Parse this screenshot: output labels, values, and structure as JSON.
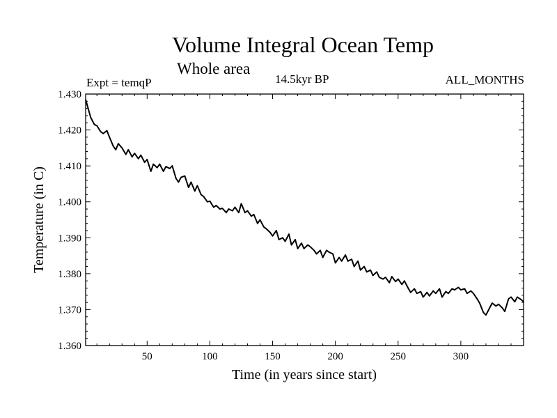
{
  "chart_data": {
    "type": "line",
    "title": "Volume Integral Ocean Temp",
    "subtitle": "Whole area",
    "annotations": {
      "left": "Expt = temqP",
      "center": "14.5kyr BP",
      "right": "ALL_MONTHS"
    },
    "xlabel": "Time (in years since start)",
    "ylabel": "Temperature (in C)",
    "xlim": [
      1,
      350
    ],
    "ylim": [
      1.36,
      1.43
    ],
    "x_ticks": [
      50,
      100,
      150,
      200,
      250,
      300
    ],
    "y_ticks": [
      1.36,
      1.37,
      1.38,
      1.39,
      1.4,
      1.41,
      1.42,
      1.43
    ],
    "y_tick_labels": [
      "1.360",
      "1.370",
      "1.380",
      "1.390",
      "1.400",
      "1.410",
      "1.420",
      "1.430"
    ],
    "series": [
      {
        "name": "Volume Integral Ocean Temp",
        "color": "#000000",
        "x": [
          1,
          3,
          5,
          8,
          10,
          13,
          15,
          18,
          20,
          23,
          25,
          27,
          30,
          33,
          35,
          38,
          40,
          43,
          45,
          48,
          50,
          53,
          55,
          58,
          60,
          63,
          65,
          68,
          70,
          73,
          75,
          77,
          80,
          83,
          85,
          88,
          90,
          93,
          95,
          98,
          100,
          103,
          105,
          108,
          110,
          113,
          115,
          118,
          120,
          123,
          125,
          128,
          130,
          133,
          135,
          138,
          140,
          143,
          145,
          148,
          150,
          153,
          155,
          158,
          160,
          163,
          165,
          168,
          170,
          173,
          175,
          178,
          180,
          183,
          185,
          188,
          190,
          193,
          195,
          198,
          200,
          203,
          205,
          208,
          210,
          213,
          215,
          218,
          220,
          223,
          225,
          228,
          230,
          233,
          235,
          238,
          240,
          243,
          245,
          248,
          250,
          253,
          255,
          258,
          260,
          263,
          265,
          268,
          270,
          273,
          275,
          278,
          280,
          283,
          285,
          288,
          290,
          293,
          295,
          298,
          300,
          303,
          305,
          308,
          310,
          313,
          315,
          318,
          320,
          323,
          325,
          328,
          330,
          333,
          335,
          338,
          340,
          343,
          345,
          348,
          350
        ],
        "values": [
          1.4285,
          1.426,
          1.4235,
          1.4215,
          1.4212,
          1.4195,
          1.419,
          1.4198,
          1.418,
          1.4155,
          1.4145,
          1.4162,
          1.415,
          1.4132,
          1.4145,
          1.4125,
          1.4135,
          1.412,
          1.413,
          1.411,
          1.4118,
          1.4085,
          1.4105,
          1.4095,
          1.4105,
          1.4085,
          1.4098,
          1.4093,
          1.41,
          1.4065,
          1.4055,
          1.4068,
          1.4072,
          1.404,
          1.4055,
          1.403,
          1.4045,
          1.402,
          1.4015,
          1.4,
          1.4002,
          1.3985,
          1.399,
          1.398,
          1.3982,
          1.397,
          1.398,
          1.3975,
          1.3985,
          1.397,
          1.3995,
          1.397,
          1.3975,
          1.396,
          1.3965,
          1.394,
          1.395,
          1.393,
          1.3925,
          1.3915,
          1.3905,
          1.392,
          1.3895,
          1.39,
          1.389,
          1.391,
          1.388,
          1.3895,
          1.387,
          1.3885,
          1.387,
          1.388,
          1.3875,
          1.3865,
          1.3855,
          1.3865,
          1.3845,
          1.3865,
          1.386,
          1.3855,
          1.383,
          1.3845,
          1.3835,
          1.3852,
          1.3835,
          1.384,
          1.382,
          1.3835,
          1.381,
          1.382,
          1.3805,
          1.381,
          1.3795,
          1.3805,
          1.379,
          1.3785,
          1.379,
          1.3775,
          1.3792,
          1.3778,
          1.3785,
          1.377,
          1.378,
          1.376,
          1.3748,
          1.3758,
          1.3745,
          1.375,
          1.3735,
          1.3748,
          1.3738,
          1.3752,
          1.3745,
          1.3758,
          1.3735,
          1.375,
          1.3745,
          1.3758,
          1.3755,
          1.3762,
          1.3755,
          1.3758,
          1.3745,
          1.3752,
          1.3745,
          1.373,
          1.3718,
          1.3692,
          1.3685,
          1.3705,
          1.3718,
          1.371,
          1.3715,
          1.3705,
          1.3695,
          1.373,
          1.3735,
          1.3722,
          1.3735,
          1.3728,
          1.3722
        ]
      }
    ]
  }
}
